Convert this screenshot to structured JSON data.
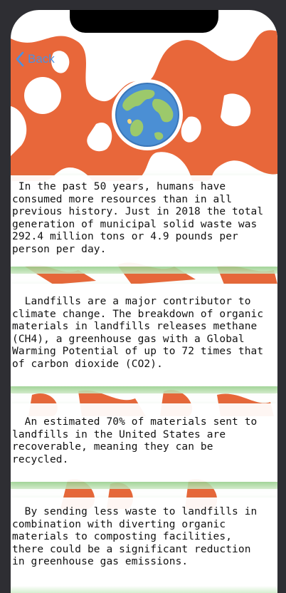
{
  "nav": {
    "back_label": "Back"
  },
  "hero": {
    "icon": "globe-icon"
  },
  "facts": [
    {
      "text": " In the past 50 years, humans have\nconsumed more resources than in all\nprevious history. Just in 2018 the total\ngeneration of municipal solid waste was\n292.4 million tons or 4.9 pounds per\nperson per day."
    },
    {
      "text": "  Landfills are a major contributor to\nclimate change. The breakdown of organic\nmaterials in landfills releases methane\n(CH4), a greenhouse gas with a Global\nWarming Potential of up to 72 times that\nof carbon dioxide (CO2)."
    },
    {
      "text": "  An estimated 70% of materials sent to\nlandfills in the United States are\nrecoverable, meaning they can be\nrecycled."
    },
    {
      "text": "  By sending less waste to landfills in\ncombination with diverting organic\nmaterials to composting facilities,\nthere could be a significant reduction\nin greenhouse gas emissions."
    }
  ],
  "colors": {
    "accent": "#4a90e2",
    "art_orange": "#e8673a",
    "card_shadow_green": "#a8d99a",
    "device_frame": "#2e2e33"
  }
}
